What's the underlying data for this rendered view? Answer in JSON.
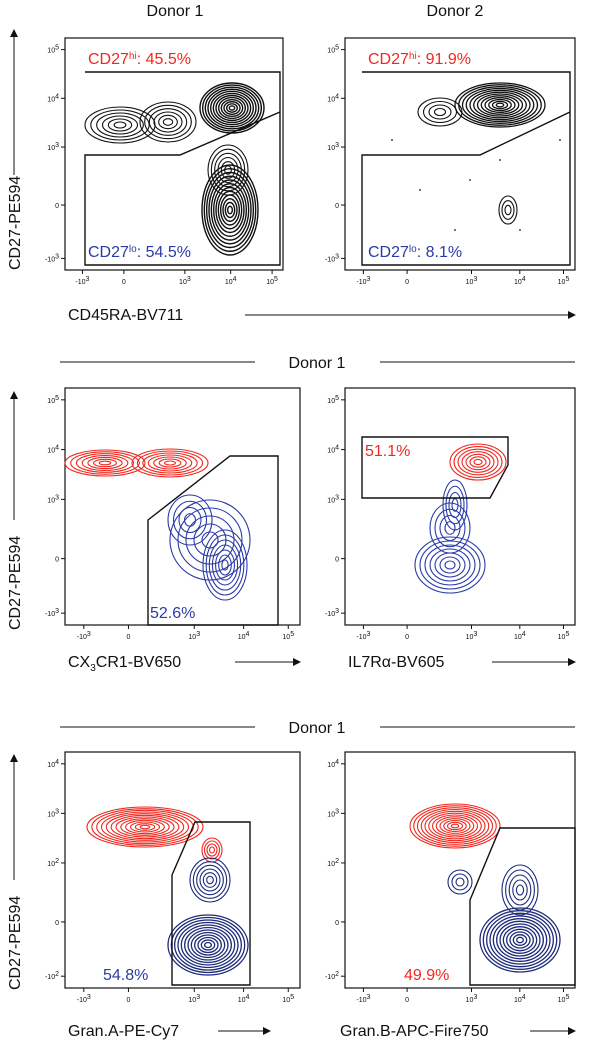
{
  "rows": [
    {
      "column_headers": [
        "Donor 1",
        "Donor 2"
      ],
      "y_label": "CD27-PE594",
      "y_ticks": [
        {
          "base": "10",
          "exp": "5"
        },
        {
          "base": "10",
          "exp": "4"
        },
        {
          "base": "10",
          "exp": "3"
        },
        {
          "base": "0"
        },
        {
          "base": "-10",
          "exp": "3"
        }
      ],
      "x_ticks": [
        {
          "base": "-10",
          "exp": "3"
        },
        {
          "base": "0"
        },
        {
          "base": "10",
          "exp": "3"
        },
        {
          "base": "10",
          "exp": "4"
        },
        {
          "base": "10",
          "exp": "5"
        }
      ],
      "x_label": "CD45RA-BV711",
      "panels": [
        {
          "hi": {
            "base": "CD27",
            "sup": "hi",
            "value": ": 45.5%"
          },
          "lo": {
            "base": "CD27",
            "sup": "lo",
            "value": ": 54.5%"
          }
        },
        {
          "hi": {
            "base": "CD27",
            "sup": "hi",
            "value": ": 91.9%"
          },
          "lo": {
            "base": "CD27",
            "sup": "lo",
            "value": ": 8.1%"
          }
        }
      ]
    },
    {
      "header": "Donor 1",
      "y_label": "CD27-PE594",
      "y_ticks": [
        {
          "base": "10",
          "exp": "5"
        },
        {
          "base": "10",
          "exp": "4"
        },
        {
          "base": "10",
          "exp": "3"
        },
        {
          "base": "0"
        },
        {
          "base": "-10",
          "exp": "3"
        }
      ],
      "x_ticks": [
        {
          "base": "-10",
          "exp": "3"
        },
        {
          "base": "0"
        },
        {
          "base": "10",
          "exp": "3"
        },
        {
          "base": "10",
          "exp": "4"
        },
        {
          "base": "10",
          "exp": "5"
        }
      ],
      "panels": [
        {
          "x_label": {
            "base": "CX",
            "sub": "3",
            "rest": "CR1-BV650"
          },
          "gate": "52.6%"
        },
        {
          "x_label": {
            "base": "IL7Rα-BV605"
          },
          "gate": "51.1%"
        }
      ]
    },
    {
      "header": "Donor 1",
      "y_label": "CD27-PE594",
      "y_ticks": [
        {
          "base": "10",
          "exp": "4"
        },
        {
          "base": "10",
          "exp": "3"
        },
        {
          "base": "10",
          "exp": "2"
        },
        {
          "base": "0"
        },
        {
          "base": "-10",
          "exp": "2"
        }
      ],
      "x_ticks": [
        {
          "base": "-10",
          "exp": "3"
        },
        {
          "base": "0"
        },
        {
          "base": "10",
          "exp": "3"
        },
        {
          "base": "10",
          "exp": "4"
        },
        {
          "base": "10",
          "exp": "5"
        }
      ],
      "panels": [
        {
          "x_label": {
            "base": "Gran.A-PE-Cy7"
          },
          "gate": "54.8%"
        },
        {
          "x_label": {
            "base": "Gran.B-APC-Fire750"
          },
          "gate": "49.9%"
        }
      ]
    }
  ]
}
